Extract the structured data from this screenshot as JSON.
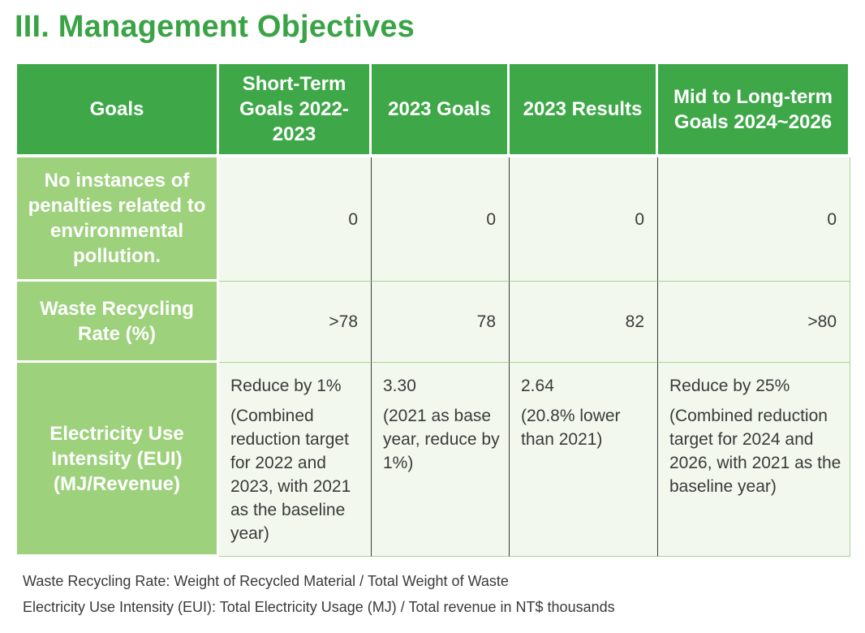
{
  "title": "III. Management Objectives",
  "table": {
    "headers": [
      "Goals",
      "Short-Term Goals 2022-2023",
      "2023 Goals",
      "2023 Results",
      "Mid to Long-term Goals 2024~2026"
    ],
    "rows": [
      {
        "goal": "No instances of penalties related to environmental pollution.",
        "short_term": "0",
        "goals_2023": "0",
        "results_2023": "0",
        "mid_long_term": "0"
      },
      {
        "goal": "Waste Recycling Rate (%)",
        "short_term": ">78",
        "goals_2023": "78",
        "results_2023": "82",
        "mid_long_term": ">80"
      },
      {
        "goal": "Electricity Use Intensity (EUI) (MJ/Revenue)",
        "short_term": {
          "main": "Reduce by 1%",
          "note": "(Combined reduction target for 2022 and 2023, with 2021 as the baseline year)"
        },
        "goals_2023": {
          "main": "3.30",
          "note": "(2021 as base year, reduce by 1%)"
        },
        "results_2023": {
          "main": "2.64",
          "note": "(20.8% lower than 2021)"
        },
        "mid_long_term": {
          "main": "Reduce by 25%",
          "note": "(Combined reduction target for 2024 and 2026, with 2021 as the baseline year)"
        }
      }
    ]
  },
  "footnotes": [
    "Waste Recycling Rate: Weight of Recycled Material / Total Weight of Waste",
    "Electricity Use Intensity (EUI): Total Electricity Usage (MJ) / Total revenue in NT$ thousands"
  ],
  "colors": {
    "title": "#3aa345",
    "header_bg": "#3ea848",
    "row_header_bg": "#9dd17c",
    "cell_bg": "#f2f8ee"
  }
}
